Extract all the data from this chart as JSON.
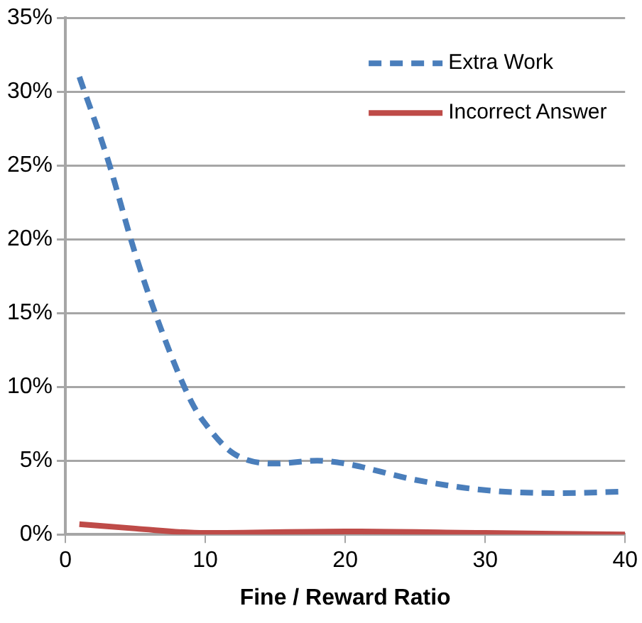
{
  "chart_data": {
    "type": "line",
    "xlabel": "Fine / Reward Ratio",
    "xlim": [
      0,
      40
    ],
    "xticks": [
      0,
      10,
      20,
      30,
      40
    ],
    "ylim": [
      0,
      35
    ],
    "yticks": [
      {
        "value": 0,
        "label": "0%"
      },
      {
        "value": 5,
        "label": "5%"
      },
      {
        "value": 10,
        "label": "10%"
      },
      {
        "value": 15,
        "label": "15%"
      },
      {
        "value": 20,
        "label": "20%"
      },
      {
        "value": 25,
        "label": "25%"
      },
      {
        "value": 30,
        "label": "30%"
      },
      {
        "value": 35,
        "label": "35%"
      }
    ],
    "grid": "y",
    "legend": "top right",
    "marker": "none",
    "series": [
      {
        "name": "Extra Work",
        "color": "#4a7ebb",
        "line_style": "dashed",
        "x": [
          1,
          3,
          5,
          7,
          9,
          10,
          12,
          15,
          18,
          20,
          25,
          30,
          35,
          40
        ],
        "values": [
          31,
          25.5,
          19,
          13.5,
          9,
          7.5,
          5.5,
          4.8,
          5.0,
          4.8,
          3.7,
          3.0,
          2.8,
          2.9
        ]
      },
      {
        "name": "Incorrect Answer",
        "color": "#be4b48",
        "line_style": "solid",
        "x": [
          1,
          5,
          10,
          20,
          30,
          40
        ],
        "values": [
          0.7,
          0.4,
          0.1,
          0.2,
          0.1,
          0.0
        ]
      }
    ]
  }
}
